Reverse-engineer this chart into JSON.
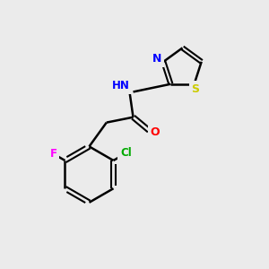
{
  "background_color": "#ebebeb",
  "bond_color": "#000000",
  "atom_colors": {
    "N": "#0000ff",
    "O": "#ff0000",
    "S": "#cccc00",
    "Cl": "#00aa00",
    "F": "#ff00ff",
    "C": "#000000",
    "H": "#808080"
  },
  "figsize": [
    3.0,
    3.0
  ],
  "dpi": 100
}
